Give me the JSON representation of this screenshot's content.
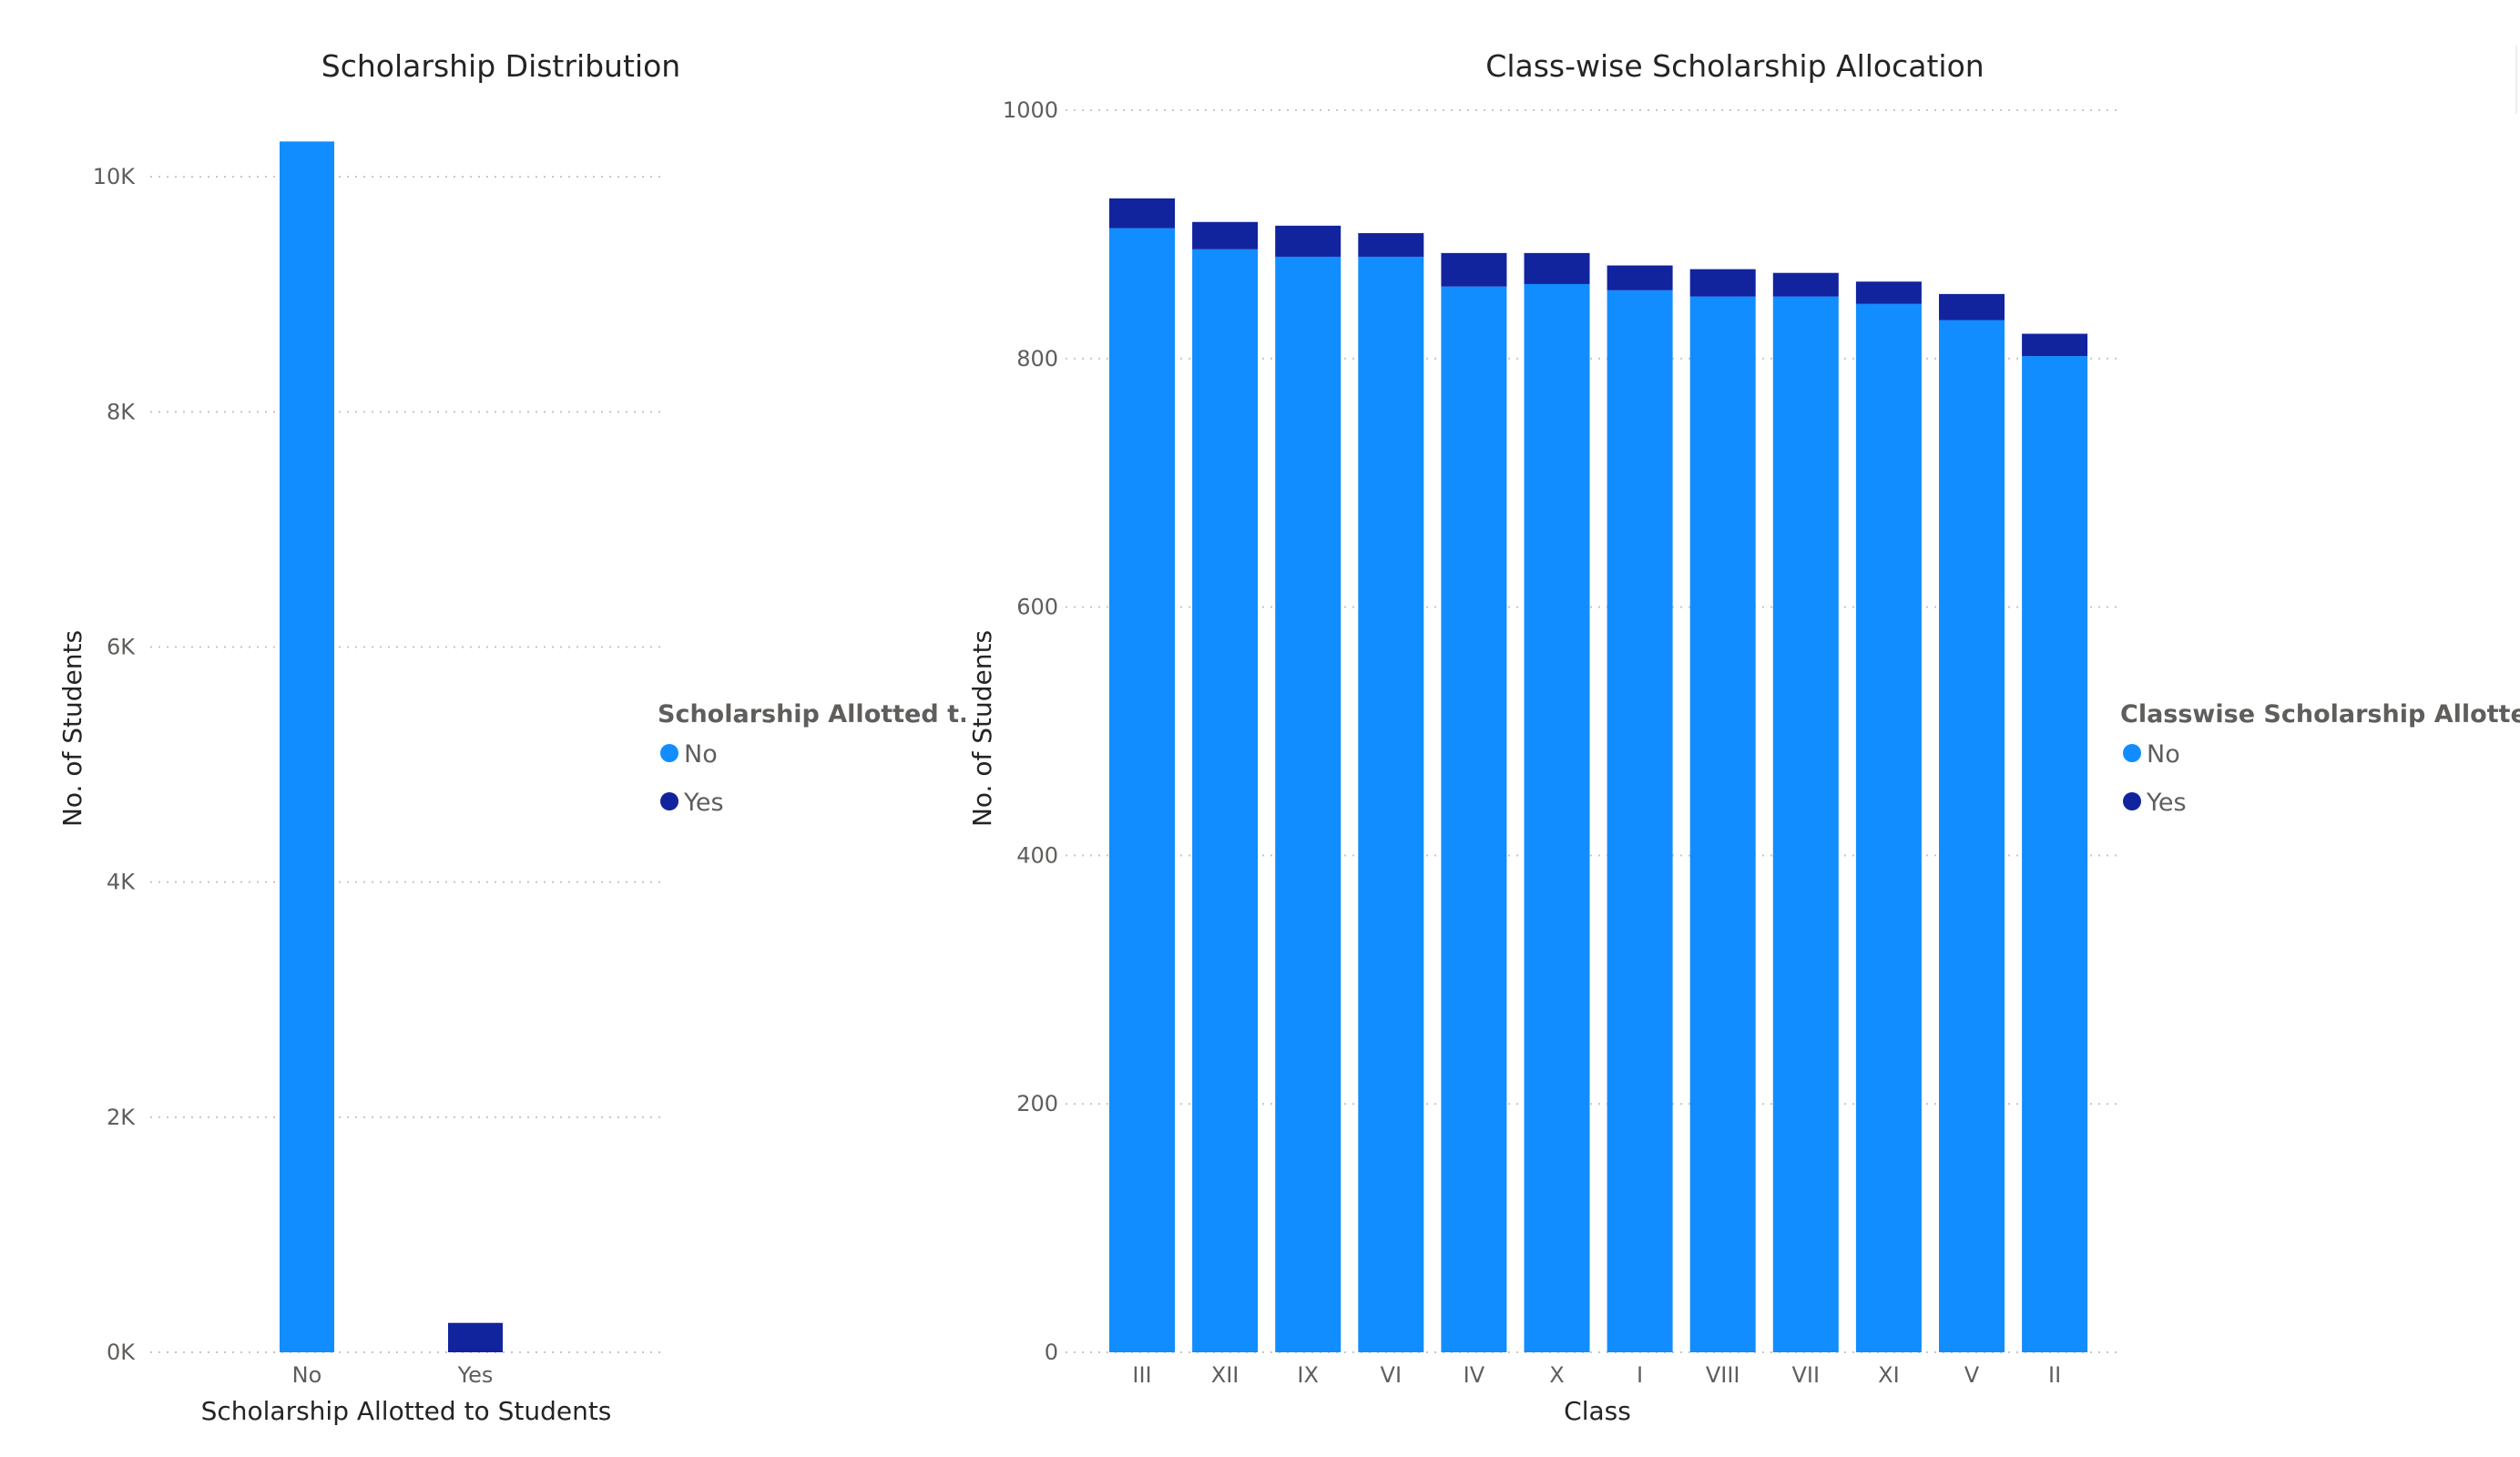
{
  "colors": {
    "no": "#118dff",
    "yes": "#12239e",
    "grid": "#c8c6c4",
    "text": "#605e5c",
    "title": "#252423"
  },
  "chart_data": [
    {
      "type": "bar",
      "title": "Scholarship Distribution",
      "xlabel": "Scholarship Allotted to Students",
      "ylabel": "No. of Students",
      "categories": [
        "No",
        "Yes"
      ],
      "series": [
        {
          "name": "No",
          "values": [
            10300,
            0
          ]
        },
        {
          "name": "Yes",
          "values": [
            0,
            250
          ]
        }
      ],
      "ylim": [
        0,
        11000
      ],
      "yticks": [
        0,
        2000,
        4000,
        6000,
        8000,
        10000
      ],
      "ytick_labels": [
        "0K",
        "2K",
        "4K",
        "6K",
        "8K",
        "10K"
      ],
      "grid": true,
      "legend": {
        "title": "Scholarship Allotted t...",
        "position": "right",
        "entries": [
          "No",
          "Yes"
        ]
      }
    },
    {
      "type": "bar",
      "stacked": true,
      "title": "Class-wise Scholarship Allocation",
      "xlabel": "Class",
      "ylabel": "No. of Students",
      "categories": [
        "III",
        "XII",
        "IX",
        "VI",
        "IV",
        "X",
        "I",
        "VIII",
        "VII",
        "XI",
        "V",
        "II"
      ],
      "series": [
        {
          "name": "No",
          "values": [
            905,
            888,
            882,
            882,
            858,
            860,
            855,
            850,
            850,
            844,
            831,
            802
          ]
        },
        {
          "name": "Yes",
          "values": [
            24,
            22,
            25,
            19,
            27,
            25,
            20,
            22,
            19,
            18,
            21,
            18
          ]
        }
      ],
      "ylim": [
        0,
        1000
      ],
      "yticks": [
        0,
        200,
        400,
        600,
        800,
        1000
      ],
      "ytick_labels": [
        "0",
        "200",
        "400",
        "600",
        "800",
        "1000"
      ],
      "grid": true,
      "legend": {
        "title": "Classwise Scholarship Allotted",
        "position": "right",
        "entries": [
          "No",
          "Yes"
        ]
      }
    }
  ]
}
